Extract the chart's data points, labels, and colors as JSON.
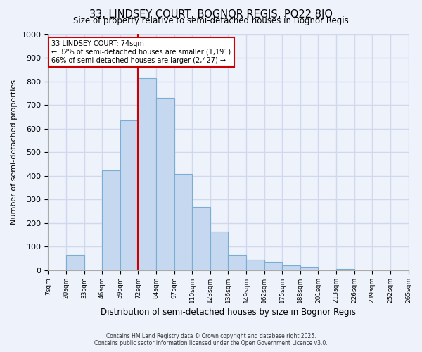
{
  "title": "33, LINDSEY COURT, BOGNOR REGIS, PO22 8JQ",
  "subtitle": "Size of property relative to semi-detached houses in Bognor Regis",
  "xlabel": "Distribution of semi-detached houses by size in Bognor Regis",
  "ylabel": "Number of semi-detached properties",
  "bin_labels": [
    "7sqm",
    "20sqm",
    "33sqm",
    "46sqm",
    "59sqm",
    "72sqm",
    "84sqm",
    "97sqm",
    "110sqm",
    "123sqm",
    "136sqm",
    "149sqm",
    "162sqm",
    "175sqm",
    "188sqm",
    "201sqm",
    "213sqm",
    "226sqm",
    "239sqm",
    "252sqm",
    "265sqm"
  ],
  "bar_values": [
    0,
    65,
    0,
    425,
    635,
    815,
    730,
    410,
    270,
    165,
    65,
    45,
    35,
    20,
    15,
    0,
    5,
    0,
    0,
    0
  ],
  "bar_color": "#c5d8f0",
  "bar_edge_color": "#7aadd4",
  "property_line_bin_index": 5,
  "ylim": [
    0,
    1000
  ],
  "yticks": [
    0,
    100,
    200,
    300,
    400,
    500,
    600,
    700,
    800,
    900,
    1000
  ],
  "annotation_title": "33 LINDSEY COURT: 74sqm",
  "annotation_line1": "← 32% of semi-detached houses are smaller (1,191)",
  "annotation_line2": "66% of semi-detached houses are larger (2,427) →",
  "annotation_box_color": "#ffffff",
  "annotation_box_edge": "#cc0000",
  "footer1": "Contains HM Land Registry data © Crown copyright and database right 2025.",
  "footer2": "Contains public sector information licensed under the Open Government Licence v3.0.",
  "background_color": "#eef2fb",
  "grid_color": "#d0d8ee"
}
